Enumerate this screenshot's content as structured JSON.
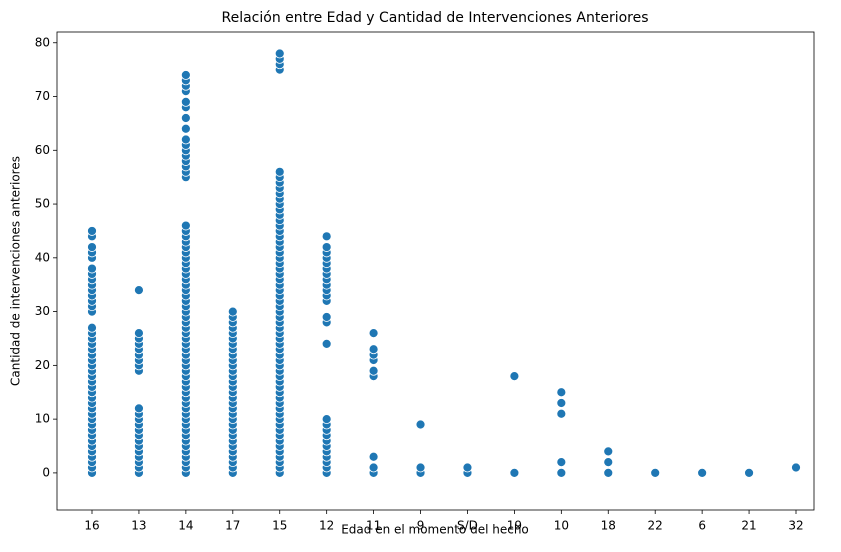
{
  "chart_data": {
    "type": "scatter",
    "title": "Relación entre Edad y Cantidad de Intervenciones Anteriores",
    "x_label": "Edad en el momento del hecho",
    "y_label": "Cantidad de intervenciones anteriores",
    "color": "#1f77b4",
    "categories": [
      "16",
      "13",
      "14",
      "17",
      "15",
      "12",
      "11",
      "9",
      "S/D",
      "19",
      "10",
      "18",
      "22",
      "6",
      "21",
      "32"
    ],
    "values": [
      [
        0,
        1,
        2,
        3,
        4,
        5,
        6,
        7,
        8,
        9,
        10,
        11,
        12,
        13,
        14,
        15,
        16,
        17,
        18,
        19,
        20,
        21,
        22,
        23,
        24,
        25,
        26,
        27,
        30,
        31,
        32,
        33,
        34,
        35,
        36,
        37,
        38,
        40,
        41,
        42,
        44,
        45
      ],
      [
        0,
        1,
        2,
        3,
        4,
        5,
        6,
        7,
        8,
        9,
        10,
        11,
        12,
        19,
        20,
        21,
        22,
        23,
        24,
        25,
        26,
        34
      ],
      [
        0,
        1,
        2,
        3,
        4,
        5,
        6,
        7,
        8,
        9,
        10,
        11,
        12,
        13,
        14,
        15,
        16,
        17,
        18,
        19,
        20,
        21,
        22,
        23,
        24,
        25,
        26,
        27,
        28,
        29,
        30,
        31,
        32,
        33,
        34,
        35,
        36,
        37,
        38,
        39,
        40,
        41,
        42,
        43,
        44,
        45,
        46,
        55,
        56,
        57,
        58,
        59,
        60,
        61,
        62,
        64,
        66,
        68,
        69,
        71,
        72,
        73,
        74
      ],
      [
        0,
        1,
        2,
        3,
        4,
        5,
        6,
        7,
        8,
        9,
        10,
        11,
        12,
        13,
        14,
        15,
        16,
        17,
        18,
        19,
        20,
        21,
        22,
        23,
        24,
        25,
        26,
        27,
        28,
        29,
        30
      ],
      [
        0,
        1,
        2,
        3,
        4,
        5,
        6,
        7,
        8,
        9,
        10,
        11,
        12,
        13,
        14,
        15,
        16,
        17,
        18,
        19,
        20,
        21,
        22,
        23,
        24,
        25,
        26,
        27,
        28,
        29,
        30,
        31,
        32,
        33,
        34,
        35,
        36,
        37,
        38,
        39,
        40,
        41,
        42,
        43,
        44,
        45,
        46,
        47,
        48,
        49,
        50,
        51,
        52,
        53,
        54,
        55,
        56,
        75,
        76,
        77,
        78
      ],
      [
        0,
        1,
        2,
        3,
        4,
        5,
        6,
        7,
        8,
        9,
        10,
        24,
        28,
        29,
        32,
        33,
        34,
        35,
        36,
        37,
        38,
        39,
        40,
        41,
        42,
        44
      ],
      [
        0,
        1,
        3,
        18,
        19,
        21,
        22,
        23,
        26
      ],
      [
        0,
        1,
        9
      ],
      [
        0,
        1
      ],
      [
        0,
        18
      ],
      [
        0,
        2,
        11,
        13,
        15
      ],
      [
        0,
        2,
        4
      ],
      [
        0
      ],
      [
        0
      ],
      [
        0
      ],
      [
        1
      ]
    ],
    "ylim": [
      -6.9,
      82
    ],
    "yticks": [
      0,
      10,
      20,
      30,
      40,
      50,
      60,
      70,
      80
    ],
    "grid": false
  }
}
